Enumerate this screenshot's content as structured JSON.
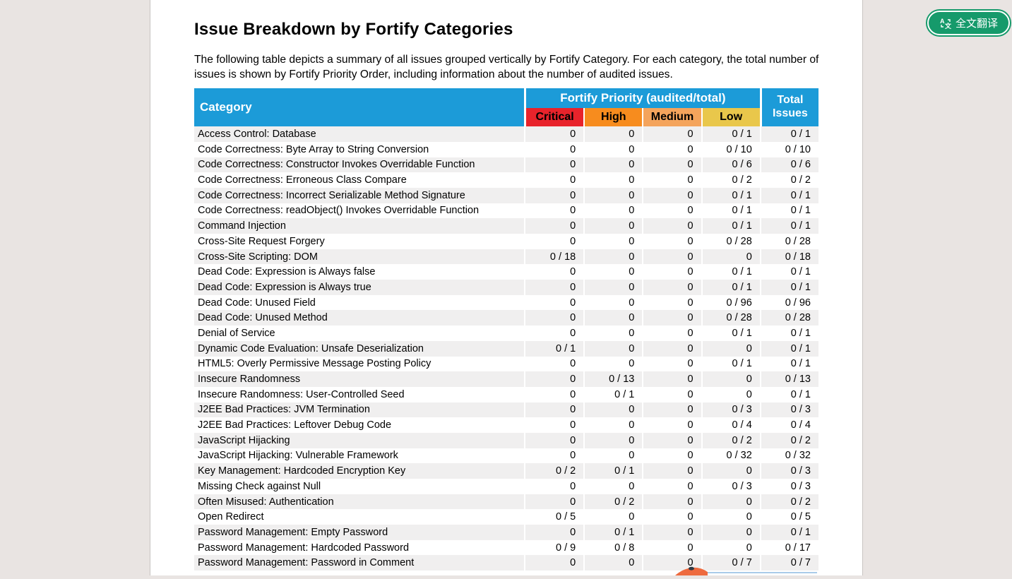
{
  "viewer": {
    "translate_button": {
      "label": "全文翻译"
    }
  },
  "page": {
    "title": "Issue Breakdown by Fortify Categories",
    "intro": "The following table depicts a summary of all issues grouped vertically by Fortify Category. For each category, the total number of issues is shown by Fortify Priority Order, including information about the number of audited issues.",
    "table": {
      "category_header": "Category",
      "priority_group_header": "Fortify Priority (audited/total)",
      "total_header": "Total Issues",
      "priority_columns": [
        {
          "label": "Critical",
          "color": "#E8232B"
        },
        {
          "label": "High",
          "color": "#F78C1E"
        },
        {
          "label": "Medium",
          "color": "#F4A45C"
        },
        {
          "label": "Low",
          "color": "#E9C74B"
        }
      ],
      "rows": [
        {
          "category": "Access Control: Database",
          "critical": "0",
          "high": "0",
          "medium": "0",
          "low": "0 / 1",
          "total": "0 / 1"
        },
        {
          "category": "Code Correctness: Byte Array to String Conversion",
          "critical": "0",
          "high": "0",
          "medium": "0",
          "low": "0 / 10",
          "total": "0 / 10"
        },
        {
          "category": "Code Correctness: Constructor Invokes Overridable Function",
          "critical": "0",
          "high": "0",
          "medium": "0",
          "low": "0 / 6",
          "total": "0 / 6"
        },
        {
          "category": "Code Correctness: Erroneous Class Compare",
          "critical": "0",
          "high": "0",
          "medium": "0",
          "low": "0 / 2",
          "total": "0 / 2"
        },
        {
          "category": "Code Correctness: Incorrect Serializable Method Signature",
          "critical": "0",
          "high": "0",
          "medium": "0",
          "low": "0 / 1",
          "total": "0 / 1"
        },
        {
          "category": "Code Correctness: readObject() Invokes Overridable Function",
          "critical": "0",
          "high": "0",
          "medium": "0",
          "low": "0 / 1",
          "total": "0 / 1"
        },
        {
          "category": "Command Injection",
          "critical": "0",
          "high": "0",
          "medium": "0",
          "low": "0 / 1",
          "total": "0 / 1"
        },
        {
          "category": "Cross-Site Request Forgery",
          "critical": "0",
          "high": "0",
          "medium": "0",
          "low": "0 / 28",
          "total": "0 / 28"
        },
        {
          "category": "Cross-Site Scripting: DOM",
          "critical": "0 / 18",
          "high": "0",
          "medium": "0",
          "low": "0",
          "total": "0 / 18"
        },
        {
          "category": "Dead Code: Expression is Always false",
          "critical": "0",
          "high": "0",
          "medium": "0",
          "low": "0 / 1",
          "total": "0 / 1"
        },
        {
          "category": "Dead Code: Expression is Always true",
          "critical": "0",
          "high": "0",
          "medium": "0",
          "low": "0 / 1",
          "total": "0 / 1"
        },
        {
          "category": "Dead Code: Unused Field",
          "critical": "0",
          "high": "0",
          "medium": "0",
          "low": "0 / 96",
          "total": "0 / 96"
        },
        {
          "category": "Dead Code: Unused Method",
          "critical": "0",
          "high": "0",
          "medium": "0",
          "low": "0 / 28",
          "total": "0 / 28"
        },
        {
          "category": "Denial of Service",
          "critical": "0",
          "high": "0",
          "medium": "0",
          "low": "0 / 1",
          "total": "0 / 1"
        },
        {
          "category": "Dynamic Code Evaluation: Unsafe Deserialization",
          "critical": "0 / 1",
          "high": "0",
          "medium": "0",
          "low": "0",
          "total": "0 / 1"
        },
        {
          "category": "HTML5: Overly Permissive Message Posting Policy",
          "critical": "0",
          "high": "0",
          "medium": "0",
          "low": "0 / 1",
          "total": "0 / 1"
        },
        {
          "category": "Insecure Randomness",
          "critical": "0",
          "high": "0 / 13",
          "medium": "0",
          "low": "0",
          "total": "0 / 13"
        },
        {
          "category": "Insecure Randomness: User-Controlled Seed",
          "critical": "0",
          "high": "0 / 1",
          "medium": "0",
          "low": "0",
          "total": "0 / 1"
        },
        {
          "category": "J2EE Bad Practices: JVM Termination",
          "critical": "0",
          "high": "0",
          "medium": "0",
          "low": "0 / 3",
          "total": "0 / 3"
        },
        {
          "category": "J2EE Bad Practices: Leftover Debug Code",
          "critical": "0",
          "high": "0",
          "medium": "0",
          "low": "0 / 4",
          "total": "0 / 4"
        },
        {
          "category": "JavaScript Hijacking",
          "critical": "0",
          "high": "0",
          "medium": "0",
          "low": "0 / 2",
          "total": "0 / 2"
        },
        {
          "category": "JavaScript Hijacking: Vulnerable Framework",
          "critical": "0",
          "high": "0",
          "medium": "0",
          "low": "0 / 32",
          "total": "0 / 32"
        },
        {
          "category": "Key Management: Hardcoded Encryption Key",
          "critical": "0 / 2",
          "high": "0 / 1",
          "medium": "0",
          "low": "0",
          "total": "0 / 3"
        },
        {
          "category": "Missing Check against Null",
          "critical": "0",
          "high": "0",
          "medium": "0",
          "low": "0 / 3",
          "total": "0 / 3"
        },
        {
          "category": "Often Misused: Authentication",
          "critical": "0",
          "high": "0 / 2",
          "medium": "0",
          "low": "0",
          "total": "0 / 2"
        },
        {
          "category": "Open Redirect",
          "critical": "0 / 5",
          "high": "0",
          "medium": "0",
          "low": "0",
          "total": "0 / 5"
        },
        {
          "category": "Password Management: Empty Password",
          "critical": "0",
          "high": "0 / 1",
          "medium": "0",
          "low": "0",
          "total": "0 / 1"
        },
        {
          "category": "Password Management: Hardcoded Password",
          "critical": "0 / 9",
          "high": "0 / 8",
          "medium": "0",
          "low": "0",
          "total": "0 / 17"
        },
        {
          "category": "Password Management: Password in Comment",
          "critical": "0",
          "high": "0",
          "medium": "0",
          "low": "0 / 7",
          "total": "0 / 7"
        }
      ]
    }
  },
  "colors": {
    "header_blue": "#1C9BD8",
    "row_stripe": "#F0EFEF",
    "viewer_background": "#E9E4E2",
    "button_green": "#169A6B",
    "decoration_orange": "#EE6A3E",
    "decoration_line_blue": "#A9CBE9"
  }
}
